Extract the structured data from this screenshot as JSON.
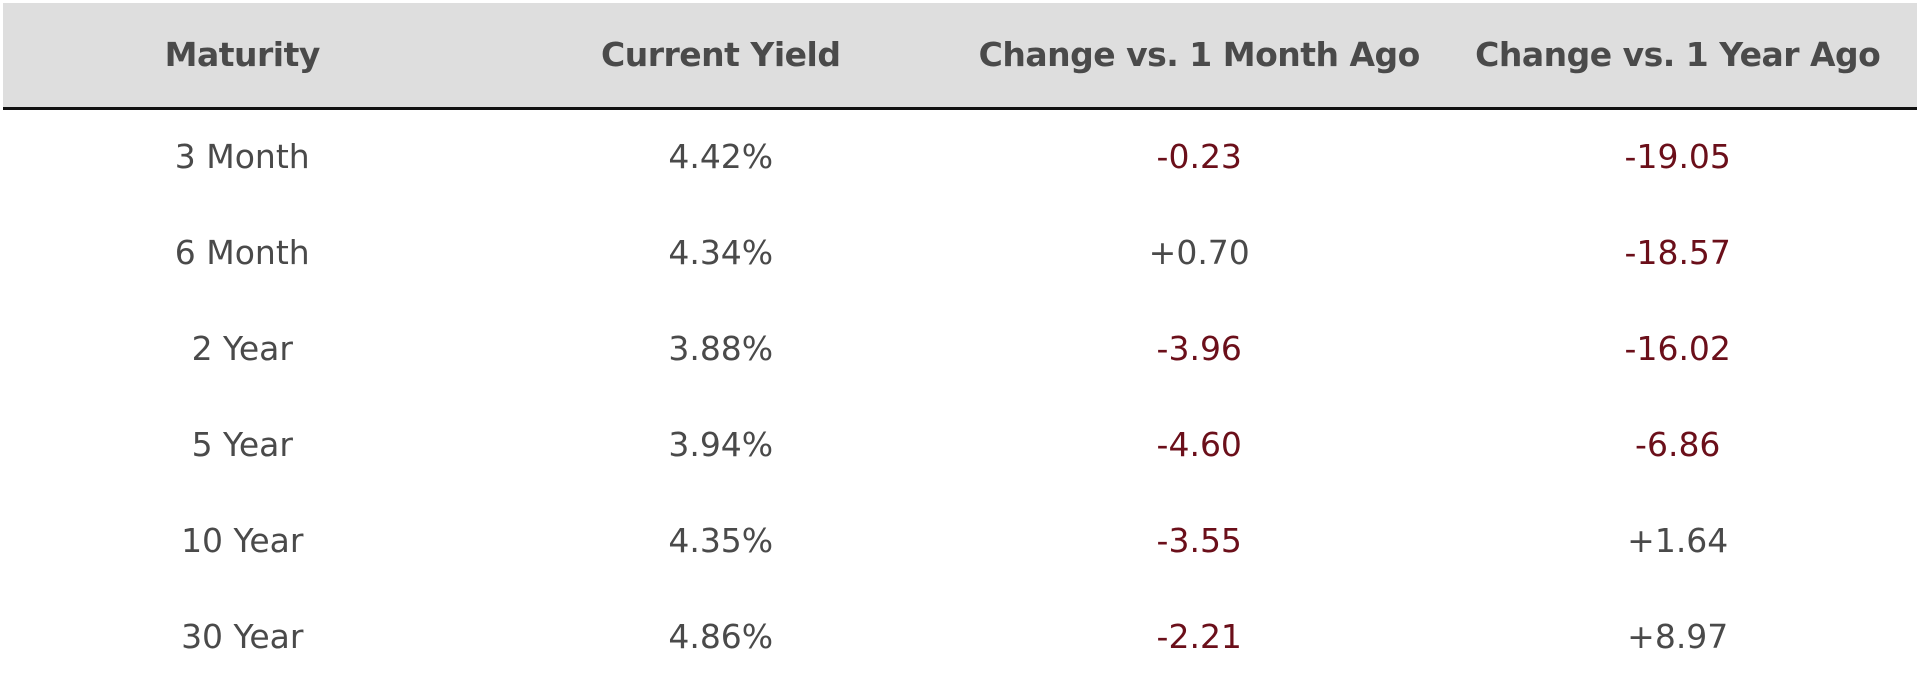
{
  "chart_data": {
    "type": "table",
    "columns": [
      "Maturity",
      "Current Yield",
      "Change vs. 1 Month Ago",
      "Change vs. 1 Year Ago"
    ],
    "rows": [
      [
        "3 Month",
        "4.42%",
        "-0.23",
        "-19.05"
      ],
      [
        "6 Month",
        "4.34%",
        "+0.70",
        "-18.57"
      ],
      [
        "2 Year",
        "3.88%",
        "-3.96",
        "-16.02"
      ],
      [
        "5 Year",
        "3.94%",
        "-4.60",
        "-6.86"
      ],
      [
        "10 Year",
        "4.35%",
        "-3.55",
        "+1.64"
      ],
      [
        "30 Year",
        "4.86%",
        "-2.21",
        "+8.97"
      ]
    ],
    "colors": {
      "header_bg": "#dedede",
      "text": "#4a4a4a",
      "negative": "#6b0f1a"
    }
  }
}
